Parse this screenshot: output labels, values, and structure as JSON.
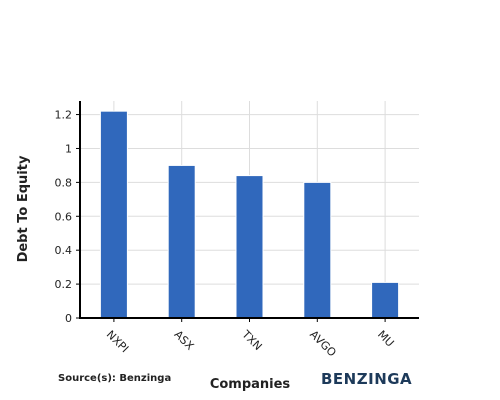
{
  "chart_data": {
    "type": "bar",
    "categories": [
      "NXPI",
      "ASX",
      "TXN",
      "AVGO",
      "MU"
    ],
    "values": [
      1.22,
      0.9,
      0.84,
      0.8,
      0.21
    ],
    "ylabel": "Debt To Equity",
    "xlabel": "Companies",
    "ylim": [
      0,
      1.28
    ],
    "yticks": [
      0,
      0.2,
      0.4,
      0.6,
      0.8,
      1,
      1.2
    ],
    "ytick_labels": [
      "0",
      "0.2",
      "0.4",
      "0.6",
      "0.8",
      "1",
      "1.2"
    ],
    "grid": true,
    "bar_color": "#3068bc",
    "grid_color": "#dddddd"
  },
  "footer": {
    "source": "Source(s): Benzinga",
    "brand": "BENZINGA",
    "brand_color": "#1d3a5a"
  }
}
